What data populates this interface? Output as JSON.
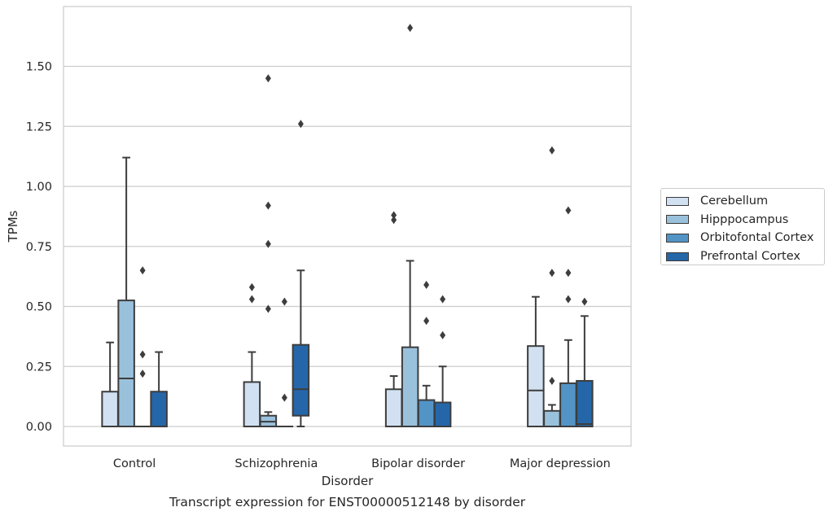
{
  "chart_data": {
    "type": "box",
    "title": "Transcript expression for ENST00000512148 by disorder",
    "xlabel": "Disorder",
    "ylabel": "TPMs",
    "ylim": [
      -0.08,
      1.75
    ],
    "yticks": [
      "0.00",
      "0.25",
      "0.50",
      "0.75",
      "1.00",
      "1.25",
      "1.50"
    ],
    "grid": "horizontal",
    "legend_position": "right",
    "categories": [
      "Control",
      "Schizophrenia",
      "Bipolar disorder",
      "Major depression"
    ],
    "series": [
      {
        "name": "Cerebellum",
        "color": "#d1e1f2",
        "boxes": [
          {
            "whisker_low": 0.0,
            "q1": 0.0,
            "median": 0.0,
            "q3": 0.145,
            "whisker_high": 0.35,
            "outliers": []
          },
          {
            "whisker_low": 0.0,
            "q1": 0.0,
            "median": 0.0,
            "q3": 0.185,
            "whisker_high": 0.31,
            "outliers": [
              0.53,
              0.58
            ]
          },
          {
            "whisker_low": 0.0,
            "q1": 0.0,
            "median": 0.0,
            "q3": 0.155,
            "whisker_high": 0.21,
            "outliers": [
              0.86,
              0.88
            ]
          },
          {
            "whisker_low": 0.0,
            "q1": 0.0,
            "median": 0.15,
            "q3": 0.335,
            "whisker_high": 0.54,
            "outliers": []
          }
        ]
      },
      {
        "name": "Hipppocampus",
        "color": "#9ac1dc",
        "boxes": [
          {
            "whisker_low": 0.0,
            "q1": 0.0,
            "median": 0.2,
            "q3": 0.525,
            "whisker_high": 1.12,
            "outliers": []
          },
          {
            "whisker_low": 0.0,
            "q1": 0.0,
            "median": 0.02,
            "q3": 0.045,
            "whisker_high": 0.06,
            "outliers": [
              0.49,
              0.76,
              0.92,
              1.45
            ]
          },
          {
            "whisker_low": 0.0,
            "q1": 0.0,
            "median": 0.0,
            "q3": 0.33,
            "whisker_high": 0.69,
            "outliers": [
              1.66
            ]
          },
          {
            "whisker_low": 0.0,
            "q1": 0.0,
            "median": 0.0,
            "q3": 0.065,
            "whisker_high": 0.09,
            "outliers": [
              0.19,
              0.64,
              1.15
            ]
          }
        ]
      },
      {
        "name": "Orbitofontal Cortex",
        "color": "#5394c6",
        "boxes": [
          {
            "whisker_low": 0.0,
            "q1": 0.0,
            "median": 0.0,
            "q3": 0.0,
            "whisker_high": 0.0,
            "outliers": [
              0.22,
              0.3,
              0.65
            ]
          },
          {
            "whisker_low": 0.0,
            "q1": 0.0,
            "median": 0.0,
            "q3": 0.0,
            "whisker_high": 0.0,
            "outliers": [
              0.12,
              0.52
            ]
          },
          {
            "whisker_low": 0.0,
            "q1": 0.0,
            "median": 0.0,
            "q3": 0.11,
            "whisker_high": 0.17,
            "outliers": [
              0.44,
              0.59
            ]
          },
          {
            "whisker_low": 0.0,
            "q1": 0.0,
            "median": 0.0,
            "q3": 0.18,
            "whisker_high": 0.36,
            "outliers": [
              0.53,
              0.64,
              0.9
            ]
          }
        ]
      },
      {
        "name": "Prefrontal Cortex",
        "color": "#2566a9",
        "boxes": [
          {
            "whisker_low": 0.0,
            "q1": 0.0,
            "median": 0.0,
            "q3": 0.145,
            "whisker_high": 0.31,
            "outliers": []
          },
          {
            "whisker_low": 0.0,
            "q1": 0.045,
            "median": 0.155,
            "q3": 0.34,
            "whisker_high": 0.65,
            "outliers": [
              1.26
            ]
          },
          {
            "whisker_low": 0.0,
            "q1": 0.0,
            "median": 0.0,
            "q3": 0.1,
            "whisker_high": 0.25,
            "outliers": [
              0.38,
              0.53
            ]
          },
          {
            "whisker_low": 0.0,
            "q1": 0.0,
            "median": 0.01,
            "q3": 0.19,
            "whisker_high": 0.46,
            "outliers": [
              0.52
            ]
          }
        ]
      }
    ]
  }
}
